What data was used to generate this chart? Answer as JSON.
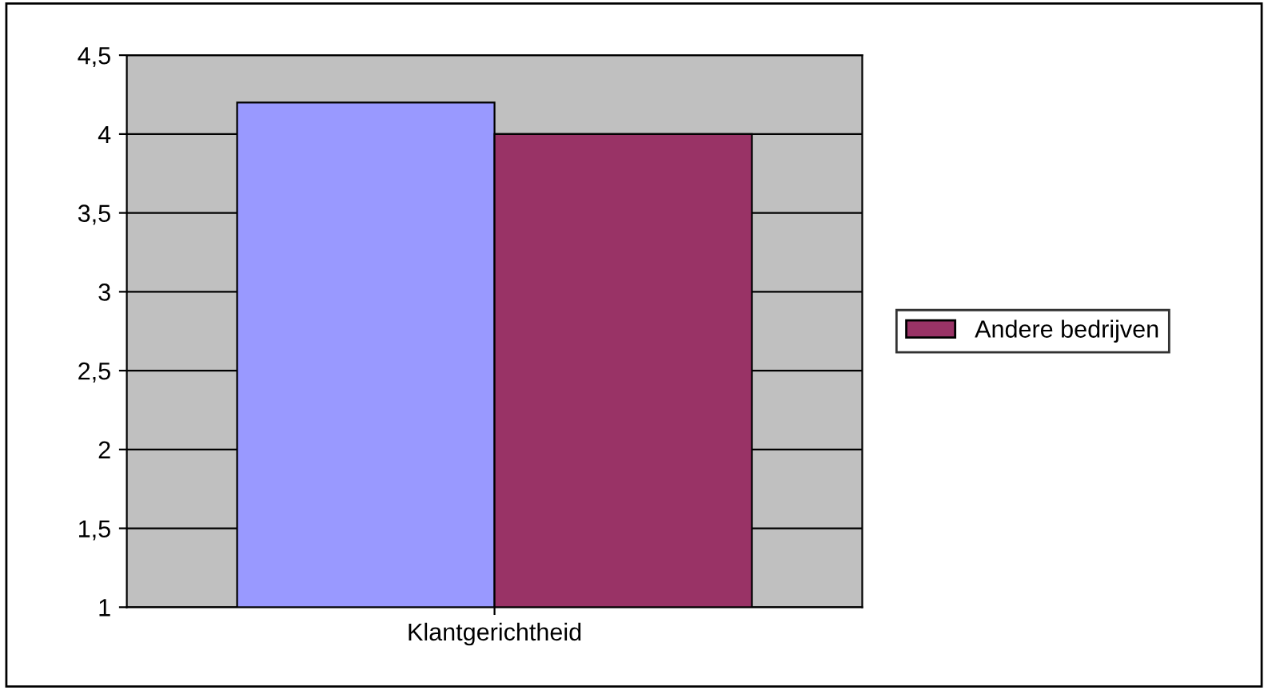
{
  "chart_data": {
    "type": "bar",
    "categories": [
      "Klantgerichtheid"
    ],
    "series": [
      {
        "color": "#9999ff",
        "values": [
          4.2
        ]
      },
      {
        "name": "Andere bedrijven",
        "color": "#993366",
        "values": [
          4.0
        ]
      }
    ],
    "ylim": [
      1,
      4.5
    ],
    "yticks": [
      1,
      {
        "value": 1.5,
        "label": "1,5"
      },
      2,
      {
        "value": 2.5,
        "label": "2,5"
      },
      3,
      {
        "value": 3.5,
        "label": "3,5"
      },
      4,
      {
        "value": 4.5,
        "label": "4,5"
      }
    ],
    "grid": "y",
    "legend": "right"
  }
}
